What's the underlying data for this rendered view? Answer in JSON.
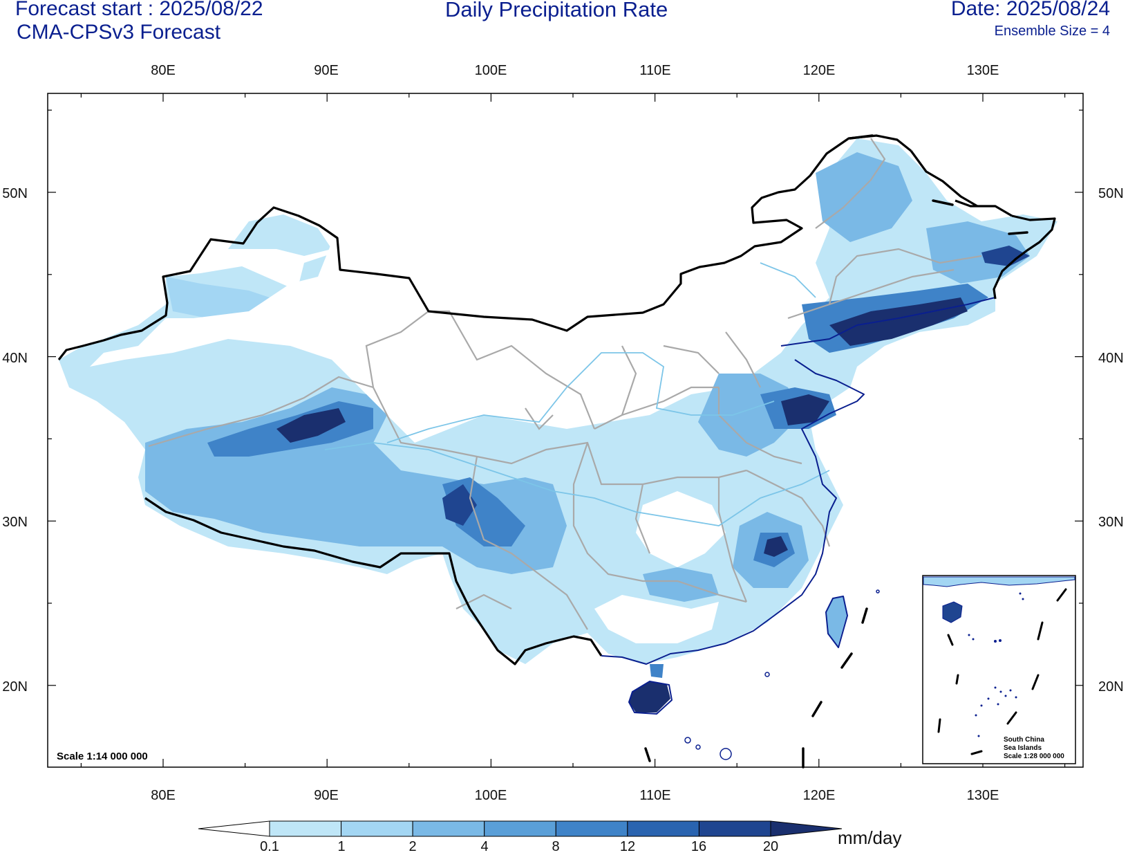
{
  "header": {
    "forecast_start": "Forecast start : 2025/08/22",
    "model": "CMA-CPSv3 Forecast",
    "title": "Daily Precipitation Rate",
    "date": "Date: 2025/08/24",
    "ensemble": "Ensemble Size = 4"
  },
  "axes": {
    "lon_labels": [
      "80E",
      "90E",
      "100E",
      "110E",
      "120E",
      "130E"
    ],
    "lat_labels": [
      "50N",
      "40N",
      "30N",
      "20N"
    ]
  },
  "map": {
    "scale": "Scale 1:14 000 000",
    "inset": {
      "line1": "South China",
      "line2": "Sea Islands",
      "line3": "Scale 1:28 000 000"
    }
  },
  "colorbar": {
    "unit": "mm/day",
    "tick_labels": [
      "0.1",
      "1",
      "2",
      "4",
      "8",
      "12",
      "16",
      "20"
    ],
    "colors": [
      "#ffffff",
      "#bfe6f7",
      "#a3d6f3",
      "#7ab9e6",
      "#5a9fd8",
      "#3f83c8",
      "#2a64b0",
      "#1f4590",
      "#1a2f6e"
    ]
  }
}
